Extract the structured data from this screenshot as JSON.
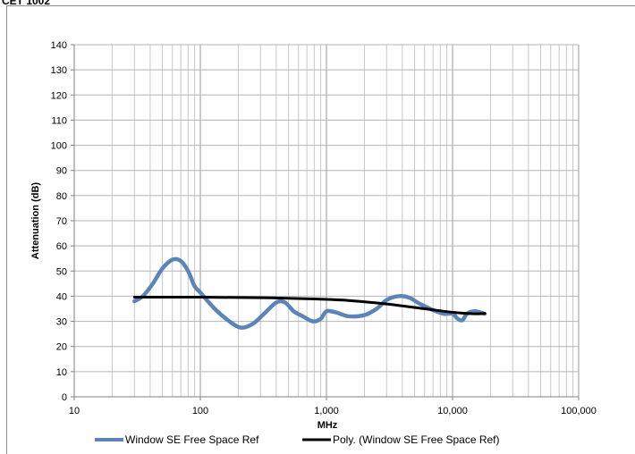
{
  "header": {
    "partial_label": "CET 1002"
  },
  "chart_data": {
    "type": "line",
    "title": "",
    "xlabel": "MHz",
    "ylabel": "Attenuation (dB)",
    "x_scale": "log",
    "xlim": [
      10,
      100000
    ],
    "ylim": [
      0,
      140
    ],
    "y_ticks": [
      0,
      10,
      20,
      30,
      40,
      50,
      60,
      70,
      80,
      90,
      100,
      110,
      120,
      130,
      140
    ],
    "x_ticks": [
      10,
      100,
      1000,
      10000,
      100000
    ],
    "x_tick_labels": [
      "10",
      "100",
      "1,000",
      "10,000",
      "100,000"
    ],
    "grid": true,
    "legend_position": "bottom",
    "series": [
      {
        "name": "Window SE Free Space Ref",
        "color": "#5b85b9",
        "x": [
          30,
          35,
          42,
          50,
          60,
          70,
          80,
          90,
          100,
          130,
          170,
          210,
          260,
          320,
          400,
          470,
          550,
          650,
          780,
          900,
          1000,
          1200,
          1500,
          2000,
          2500,
          3000,
          3700,
          4500,
          5500,
          7000,
          8500,
          10000,
          11000,
          12000,
          13000,
          15000,
          18000
        ],
        "y": [
          38,
          40,
          45,
          51,
          54.5,
          54,
          50,
          44,
          41.5,
          35,
          30,
          27.5,
          29,
          33,
          37.5,
          37.5,
          34,
          32,
          30,
          31,
          34,
          33.5,
          32,
          32.5,
          35,
          38.5,
          40,
          39.5,
          37,
          34.5,
          33,
          33,
          31,
          30.5,
          33,
          34,
          33
        ]
      },
      {
        "name": "Poly. (Window SE Free Space Ref)",
        "color": "#000000",
        "x": [
          30,
          100,
          300,
          800,
          1500,
          3000,
          6000,
          10000,
          15000,
          18000
        ],
        "y": [
          39.6,
          39.6,
          39.4,
          38.9,
          38.3,
          36.9,
          35.0,
          33.6,
          33.0,
          33.2
        ]
      }
    ]
  }
}
